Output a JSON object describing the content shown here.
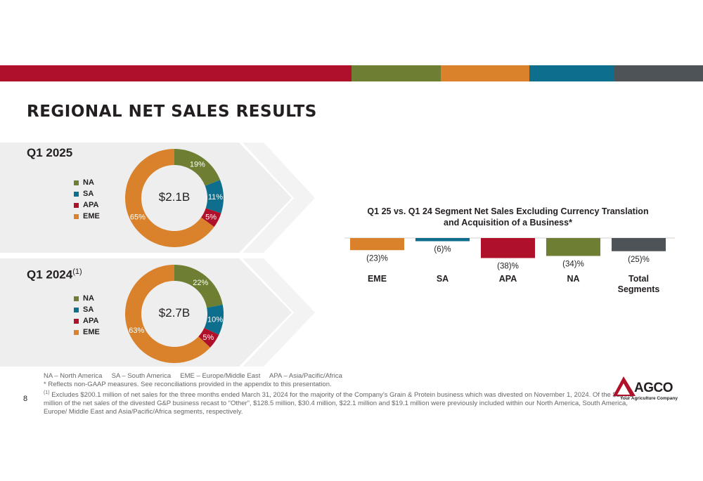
{
  "colors": {
    "na": "#6e7f34",
    "sa": "#0d6e8d",
    "apa": "#b0112a",
    "eme": "#d9822b",
    "total": "#4d5356",
    "top_stripe": [
      "#b0112a",
      "#6e7f34",
      "#d9822b",
      "#0d6e8d",
      "#4d5356"
    ]
  },
  "page": {
    "title": "REGIONAL NET SALES RESULTS",
    "page_number": "8"
  },
  "legend": [
    "NA",
    "SA",
    "APA",
    "EME"
  ],
  "chart_data": [
    {
      "type": "pie",
      "title": "Q1 2025",
      "center_label": "$2.1B",
      "categories": [
        "NA",
        "SA",
        "APA",
        "EME"
      ],
      "values": [
        19,
        11,
        5,
        65
      ],
      "labels": [
        "19%",
        "11%",
        "5%",
        "65%"
      ]
    },
    {
      "type": "pie",
      "title": "Q1 2024",
      "title_sup": "(1)",
      "center_label": "$2.7B",
      "categories": [
        "NA",
        "SA",
        "APA",
        "EME"
      ],
      "values": [
        22,
        10,
        5,
        63
      ],
      "labels": [
        "22%",
        "10%",
        "5%",
        "63%"
      ]
    },
    {
      "type": "bar",
      "title": "Q1 25 vs. Q1 24 Segment Net Sales Excluding Currency Translation and Acquisition of a Business*",
      "categories": [
        "EME",
        "SA",
        "APA",
        "NA",
        "Total Segments"
      ],
      "values": [
        -23,
        -6,
        -38,
        -34,
        -25
      ],
      "labels": [
        "(23)%",
        "(6)%",
        "(38)%",
        "(34)%",
        "(25)%"
      ],
      "ylim": [
        -40,
        0
      ]
    }
  ],
  "footnotes": {
    "abbreviations": "NA – North America     SA – South America     EME – Europe/Middle East     APA – Asia/Pacific/Africa",
    "non_gaap": "* Reflects non-GAAP measures. See reconciliations provided in the appendix to this presentation.",
    "note_marker": "(1)",
    "note": " Excludes $200.1 million of net sales for the three months ended March 31, 2024 for the majority of the Company’s Grain & Protein business which was divested on November 1, 2024. Of the $200.1 million of the net sales of the divested G&P business recast to “Other”, $128.5 million, $30.4 million, $22.1 million and $19.1 million were previously included within our North America, South America, Europe/ Middle East and Asia/Pacific/Africa segments, respectively."
  },
  "logo": {
    "name": "AGCO",
    "tagline": "Your Agriculture Company"
  }
}
